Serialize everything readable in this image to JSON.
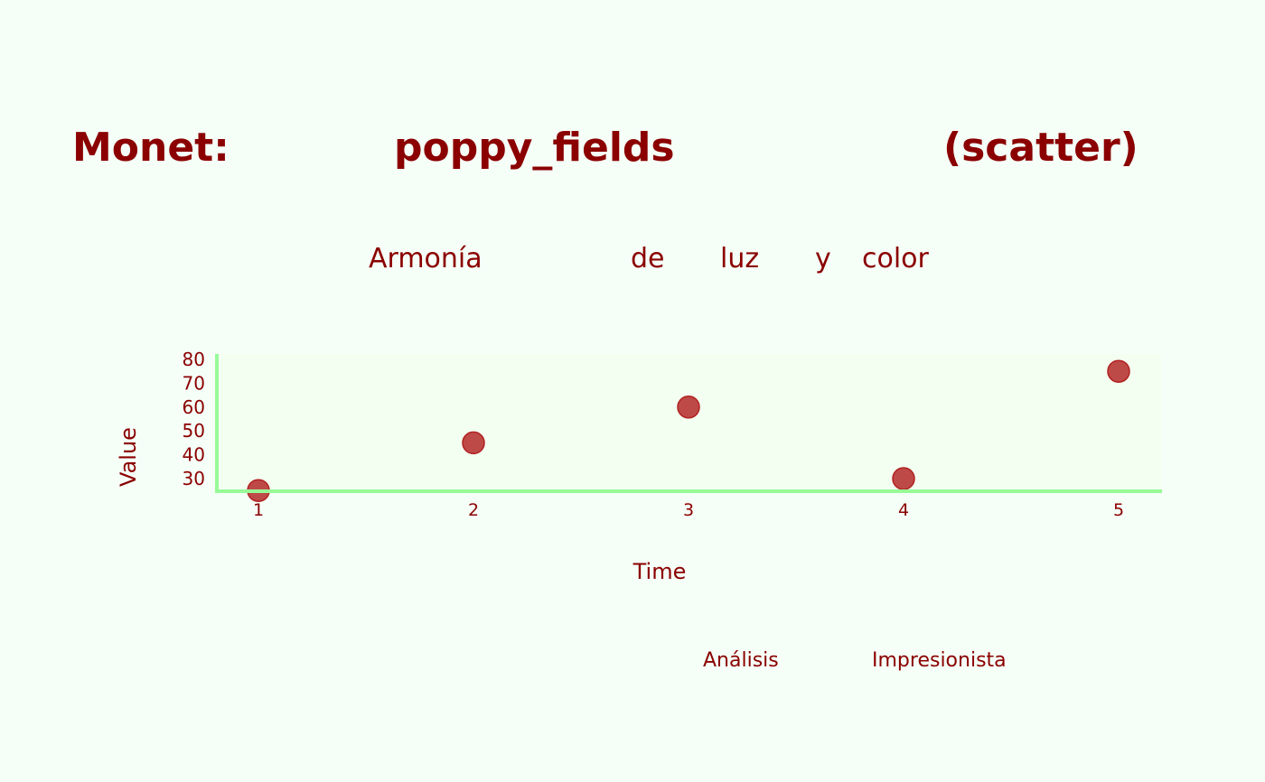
{
  "title_words": [
    "Monet:",
    "poppy_fields",
    "(scatter)"
  ],
  "subtitle_words": [
    "Armonía",
    "de",
    "luz",
    "y",
    "color"
  ],
  "footer_words": [
    "Análisis",
    "Impresionista"
  ],
  "chart_data": {
    "type": "scatter",
    "xlabel": "Time",
    "ylabel": "Value",
    "x": [
      1,
      2,
      3,
      4,
      5
    ],
    "y": [
      25,
      45,
      60,
      30,
      75
    ],
    "xticks": [
      "1",
      "2",
      "3",
      "4",
      "5"
    ],
    "yticks": [
      "30",
      "40",
      "50",
      "60",
      "70",
      "80"
    ],
    "xlim": [
      0.8,
      5.2
    ],
    "ylim": [
      25,
      80
    ],
    "grid": false,
    "colors": {
      "text": "#8b0000",
      "marker": "#b22222",
      "axis": "#98fb98",
      "plot_bg": "#f3fff0",
      "page_bg": "#f5fff7"
    }
  }
}
